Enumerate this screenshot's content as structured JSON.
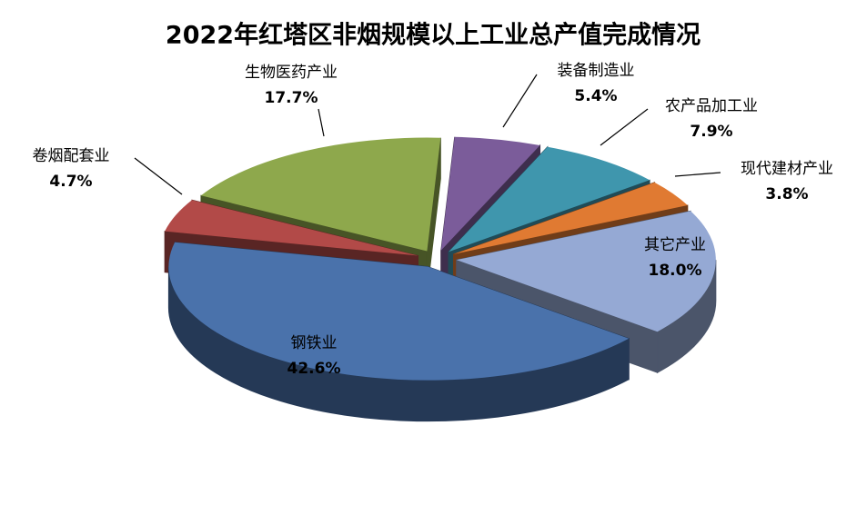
{
  "chart_data": {
    "type": "pie",
    "title": "2022年红塔区非烟规模以上工业总产值完成情况",
    "categories": [
      "装备制造业",
      "农产品加工业",
      "现代建材产业",
      "其它产业",
      "钢铁业",
      "卷烟配套业",
      "生物医药产业"
    ],
    "values": [
      5.4,
      7.9,
      3.8,
      18.0,
      42.6,
      4.7,
      17.7
    ],
    "value_labels": [
      "5.4%",
      "7.9%",
      "3.8%",
      "18.0%",
      "42.6%",
      "4.7%",
      "17.7%"
    ],
    "colors": [
      "#7b5c9a",
      "#3f96ad",
      "#e07a32",
      "#95a9d4",
      "#4a72ab",
      "#b24a48",
      "#8ea84c"
    ]
  }
}
